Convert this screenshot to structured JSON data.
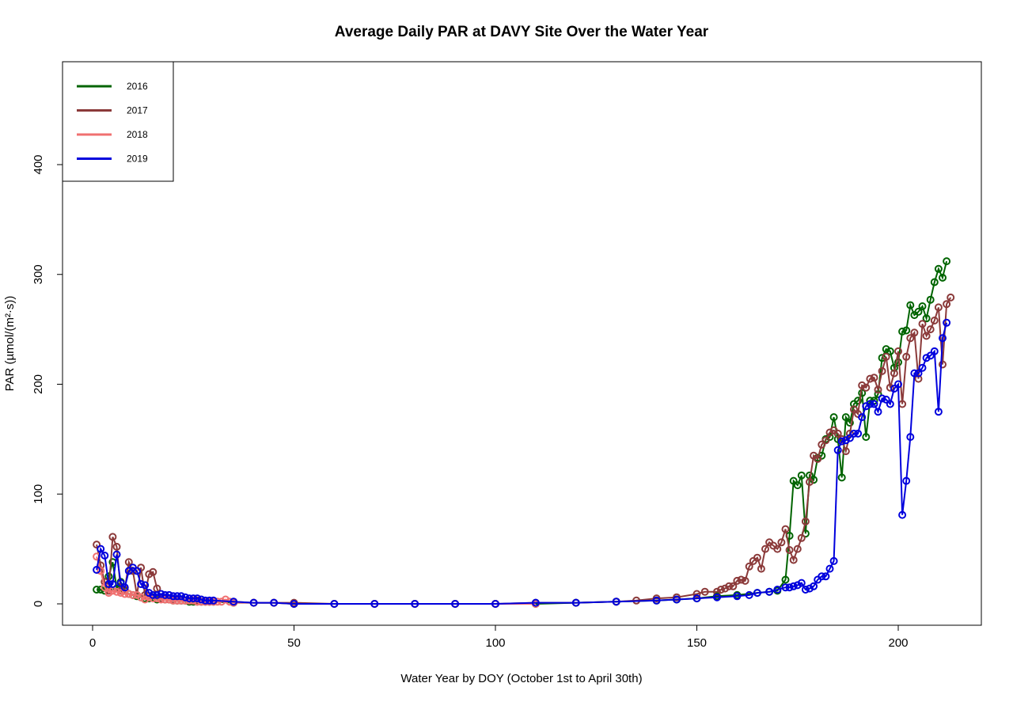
{
  "chart_data": {
    "type": "line",
    "title": "Average Daily PAR at DAVY Site Over the Water Year",
    "xlabel": "Water Year by DOY (October 1st to April 30th)",
    "ylabel": "PAR (µmol/(m²·s))",
    "xlim": [
      0,
      220
    ],
    "ylim": [
      -20,
      490
    ],
    "xticks": [
      0,
      50,
      100,
      150,
      200
    ],
    "yticks": [
      0,
      100,
      200,
      300,
      400
    ],
    "legend": "top-left",
    "markers": "open-circle",
    "series": [
      {
        "name": "2016",
        "color": "#006400",
        "points": [
          [
            1,
            13
          ],
          [
            2,
            13
          ],
          [
            3,
            12
          ],
          [
            4,
            25
          ],
          [
            5,
            38
          ],
          [
            6,
            14
          ],
          [
            7,
            20
          ],
          [
            8,
            12
          ],
          [
            9,
            9
          ],
          [
            10,
            8
          ],
          [
            11,
            7
          ],
          [
            12,
            6
          ],
          [
            13,
            5
          ],
          [
            14,
            5
          ],
          [
            15,
            6
          ],
          [
            16,
            4
          ],
          [
            17,
            5
          ],
          [
            18,
            4
          ],
          [
            19,
            4
          ],
          [
            20,
            3
          ],
          [
            21,
            3
          ],
          [
            22,
            3
          ],
          [
            23,
            3
          ],
          [
            24,
            2
          ],
          [
            25,
            2
          ],
          [
            26,
            2
          ],
          [
            27,
            2
          ],
          [
            28,
            2
          ],
          [
            29,
            2
          ],
          [
            30,
            2
          ],
          [
            35,
            1
          ],
          [
            40,
            1
          ],
          [
            45,
            1
          ],
          [
            50,
            0
          ],
          [
            60,
            0
          ],
          [
            70,
            0
          ],
          [
            80,
            0
          ],
          [
            90,
            0
          ],
          [
            100,
            0
          ],
          [
            110,
            0
          ],
          [
            120,
            1
          ],
          [
            130,
            2
          ],
          [
            140,
            3
          ],
          [
            145,
            4
          ],
          [
            150,
            5
          ],
          [
            155,
            7
          ],
          [
            160,
            8
          ],
          [
            165,
            10
          ],
          [
            168,
            11
          ],
          [
            170,
            12
          ],
          [
            172,
            22
          ],
          [
            173,
            62
          ],
          [
            174,
            112
          ],
          [
            175,
            108
          ],
          [
            176,
            117
          ],
          [
            177,
            64
          ],
          [
            178,
            117
          ],
          [
            179,
            113
          ],
          [
            180,
            133
          ],
          [
            181,
            135
          ],
          [
            182,
            150
          ],
          [
            183,
            152
          ],
          [
            184,
            170
          ],
          [
            185,
            150
          ],
          [
            186,
            115
          ],
          [
            187,
            170
          ],
          [
            188,
            165
          ],
          [
            189,
            182
          ],
          [
            190,
            185
          ],
          [
            191,
            192
          ],
          [
            192,
            152
          ],
          [
            193,
            185
          ],
          [
            194,
            185
          ],
          [
            195,
            191
          ],
          [
            196,
            224
          ],
          [
            197,
            232
          ],
          [
            198,
            230
          ],
          [
            199,
            215
          ],
          [
            200,
            220
          ],
          [
            201,
            248
          ],
          [
            202,
            249
          ],
          [
            203,
            272
          ],
          [
            204,
            263
          ],
          [
            205,
            266
          ],
          [
            206,
            271
          ],
          [
            207,
            260
          ],
          [
            208,
            277
          ],
          [
            209,
            293
          ],
          [
            210,
            305
          ],
          [
            211,
            297
          ],
          [
            212,
            312
          ]
        ]
      },
      {
        "name": "2017",
        "color": "#8B3A3A",
        "points": [
          [
            1,
            54
          ],
          [
            2,
            35
          ],
          [
            3,
            20
          ],
          [
            4,
            12
          ],
          [
            5,
            61
          ],
          [
            6,
            52
          ],
          [
            7,
            12
          ],
          [
            8,
            13
          ],
          [
            9,
            38
          ],
          [
            10,
            30
          ],
          [
            11,
            8
          ],
          [
            12,
            33
          ],
          [
            13,
            8
          ],
          [
            14,
            27
          ],
          [
            15,
            29
          ],
          [
            16,
            14
          ],
          [
            17,
            5
          ],
          [
            18,
            4
          ],
          [
            19,
            4
          ],
          [
            20,
            4
          ],
          [
            21,
            3
          ],
          [
            22,
            3
          ],
          [
            23,
            3
          ],
          [
            24,
            3
          ],
          [
            25,
            3
          ],
          [
            26,
            3
          ],
          [
            27,
            2
          ],
          [
            28,
            2
          ],
          [
            29,
            2
          ],
          [
            30,
            2
          ],
          [
            35,
            2
          ],
          [
            40,
            1
          ],
          [
            45,
            1
          ],
          [
            50,
            1
          ],
          [
            60,
            0
          ],
          [
            70,
            0
          ],
          [
            80,
            0
          ],
          [
            90,
            0
          ],
          [
            100,
            0
          ],
          [
            110,
            1
          ],
          [
            120,
            1
          ],
          [
            130,
            2
          ],
          [
            135,
            3
          ],
          [
            140,
            5
          ],
          [
            145,
            6
          ],
          [
            150,
            9
          ],
          [
            152,
            11
          ],
          [
            155,
            11
          ],
          [
            156,
            13
          ],
          [
            157,
            14
          ],
          [
            158,
            16
          ],
          [
            159,
            16
          ],
          [
            160,
            21
          ],
          [
            161,
            22
          ],
          [
            162,
            21
          ],
          [
            163,
            34
          ],
          [
            164,
            39
          ],
          [
            165,
            42
          ],
          [
            166,
            32
          ],
          [
            167,
            50
          ],
          [
            168,
            56
          ],
          [
            169,
            53
          ],
          [
            170,
            50
          ],
          [
            171,
            56
          ],
          [
            172,
            68
          ],
          [
            173,
            49
          ],
          [
            174,
            40
          ],
          [
            175,
            50
          ],
          [
            176,
            60
          ],
          [
            177,
            75
          ],
          [
            178,
            111
          ],
          [
            179,
            135
          ],
          [
            180,
            132
          ],
          [
            181,
            145
          ],
          [
            182,
            149
          ],
          [
            183,
            156
          ],
          [
            184,
            158
          ],
          [
            185,
            155
          ],
          [
            186,
            150
          ],
          [
            187,
            139
          ],
          [
            188,
            155
          ],
          [
            189,
            177
          ],
          [
            190,
            173
          ],
          [
            191,
            199
          ],
          [
            192,
            197
          ],
          [
            193,
            205
          ],
          [
            194,
            206
          ],
          [
            195,
            195
          ],
          [
            196,
            212
          ],
          [
            197,
            225
          ],
          [
            198,
            197
          ],
          [
            199,
            210
          ],
          [
            200,
            230
          ],
          [
            201,
            182
          ],
          [
            202,
            225
          ],
          [
            203,
            242
          ],
          [
            204,
            247
          ],
          [
            205,
            205
          ],
          [
            206,
            255
          ],
          [
            207,
            244
          ],
          [
            208,
            250
          ],
          [
            209,
            258
          ],
          [
            210,
            270
          ],
          [
            211,
            218
          ],
          [
            212,
            273
          ],
          [
            213,
            279
          ]
        ]
      },
      {
        "name": "2018",
        "color": "#F07070",
        "points": [
          [
            1,
            43
          ],
          [
            2,
            30
          ],
          [
            3,
            15
          ],
          [
            4,
            10
          ],
          [
            5,
            12
          ],
          [
            6,
            11
          ],
          [
            7,
            10
          ],
          [
            8,
            9
          ],
          [
            9,
            9
          ],
          [
            10,
            8
          ],
          [
            11,
            8
          ],
          [
            12,
            6
          ],
          [
            13,
            4
          ],
          [
            14,
            6
          ],
          [
            15,
            5
          ],
          [
            16,
            5
          ],
          [
            17,
            4
          ],
          [
            18,
            4
          ],
          [
            19,
            4
          ],
          [
            20,
            3
          ],
          [
            21,
            3
          ],
          [
            22,
            3
          ],
          [
            23,
            3
          ],
          [
            24,
            3
          ],
          [
            25,
            3
          ],
          [
            26,
            2
          ],
          [
            27,
            2
          ],
          [
            28,
            2
          ],
          [
            29,
            2
          ],
          [
            30,
            2
          ],
          [
            31,
            2
          ],
          [
            32,
            2
          ],
          [
            33,
            4
          ],
          [
            34,
            2
          ],
          [
            35,
            1
          ],
          [
            40,
            1
          ],
          [
            45,
            1
          ],
          [
            50,
            0
          ],
          [
            60,
            0
          ],
          [
            70,
            0
          ],
          [
            80,
            0
          ],
          [
            90,
            0
          ],
          [
            100,
            0
          ],
          [
            110,
            0
          ]
        ]
      },
      {
        "name": "2019",
        "color": "#0000DD",
        "points": [
          [
            1,
            31
          ],
          [
            2,
            50
          ],
          [
            3,
            44
          ],
          [
            4,
            18
          ],
          [
            5,
            18
          ],
          [
            6,
            45
          ],
          [
            7,
            19
          ],
          [
            8,
            15
          ],
          [
            9,
            30
          ],
          [
            10,
            33
          ],
          [
            11,
            30
          ],
          [
            12,
            18
          ],
          [
            13,
            17
          ],
          [
            14,
            10
          ],
          [
            15,
            8
          ],
          [
            16,
            8
          ],
          [
            17,
            9
          ],
          [
            18,
            8
          ],
          [
            19,
            8
          ],
          [
            20,
            7
          ],
          [
            21,
            7
          ],
          [
            22,
            7
          ],
          [
            23,
            6
          ],
          [
            24,
            5
          ],
          [
            25,
            5
          ],
          [
            26,
            5
          ],
          [
            27,
            4
          ],
          [
            28,
            3
          ],
          [
            29,
            3
          ],
          [
            30,
            3
          ],
          [
            35,
            2
          ],
          [
            40,
            1
          ],
          [
            45,
            1
          ],
          [
            50,
            0
          ],
          [
            60,
            0
          ],
          [
            70,
            0
          ],
          [
            80,
            0
          ],
          [
            90,
            0
          ],
          [
            100,
            0
          ],
          [
            110,
            1
          ],
          [
            120,
            1
          ],
          [
            130,
            2
          ],
          [
            140,
            3
          ],
          [
            145,
            4
          ],
          [
            150,
            5
          ],
          [
            155,
            6
          ],
          [
            160,
            7
          ],
          [
            163,
            8
          ],
          [
            165,
            10
          ],
          [
            168,
            11
          ],
          [
            170,
            13
          ],
          [
            172,
            15
          ],
          [
            173,
            15
          ],
          [
            174,
            16
          ],
          [
            175,
            17
          ],
          [
            176,
            19
          ],
          [
            177,
            13
          ],
          [
            178,
            14
          ],
          [
            179,
            16
          ],
          [
            180,
            22
          ],
          [
            181,
            25
          ],
          [
            182,
            25
          ],
          [
            183,
            32
          ],
          [
            184,
            39
          ],
          [
            185,
            140
          ],
          [
            186,
            148
          ],
          [
            187,
            149
          ],
          [
            188,
            151
          ],
          [
            189,
            155
          ],
          [
            190,
            155
          ],
          [
            191,
            170
          ],
          [
            192,
            180
          ],
          [
            193,
            182
          ],
          [
            194,
            182
          ],
          [
            195,
            175
          ],
          [
            196,
            187
          ],
          [
            197,
            186
          ],
          [
            198,
            182
          ],
          [
            199,
            196
          ],
          [
            200,
            200
          ],
          [
            201,
            81
          ],
          [
            202,
            112
          ],
          [
            203,
            152
          ],
          [
            204,
            210
          ],
          [
            205,
            210
          ],
          [
            206,
            215
          ],
          [
            207,
            224
          ],
          [
            208,
            226
          ],
          [
            209,
            230
          ],
          [
            210,
            175
          ],
          [
            211,
            242
          ],
          [
            212,
            256
          ]
        ]
      }
    ]
  }
}
